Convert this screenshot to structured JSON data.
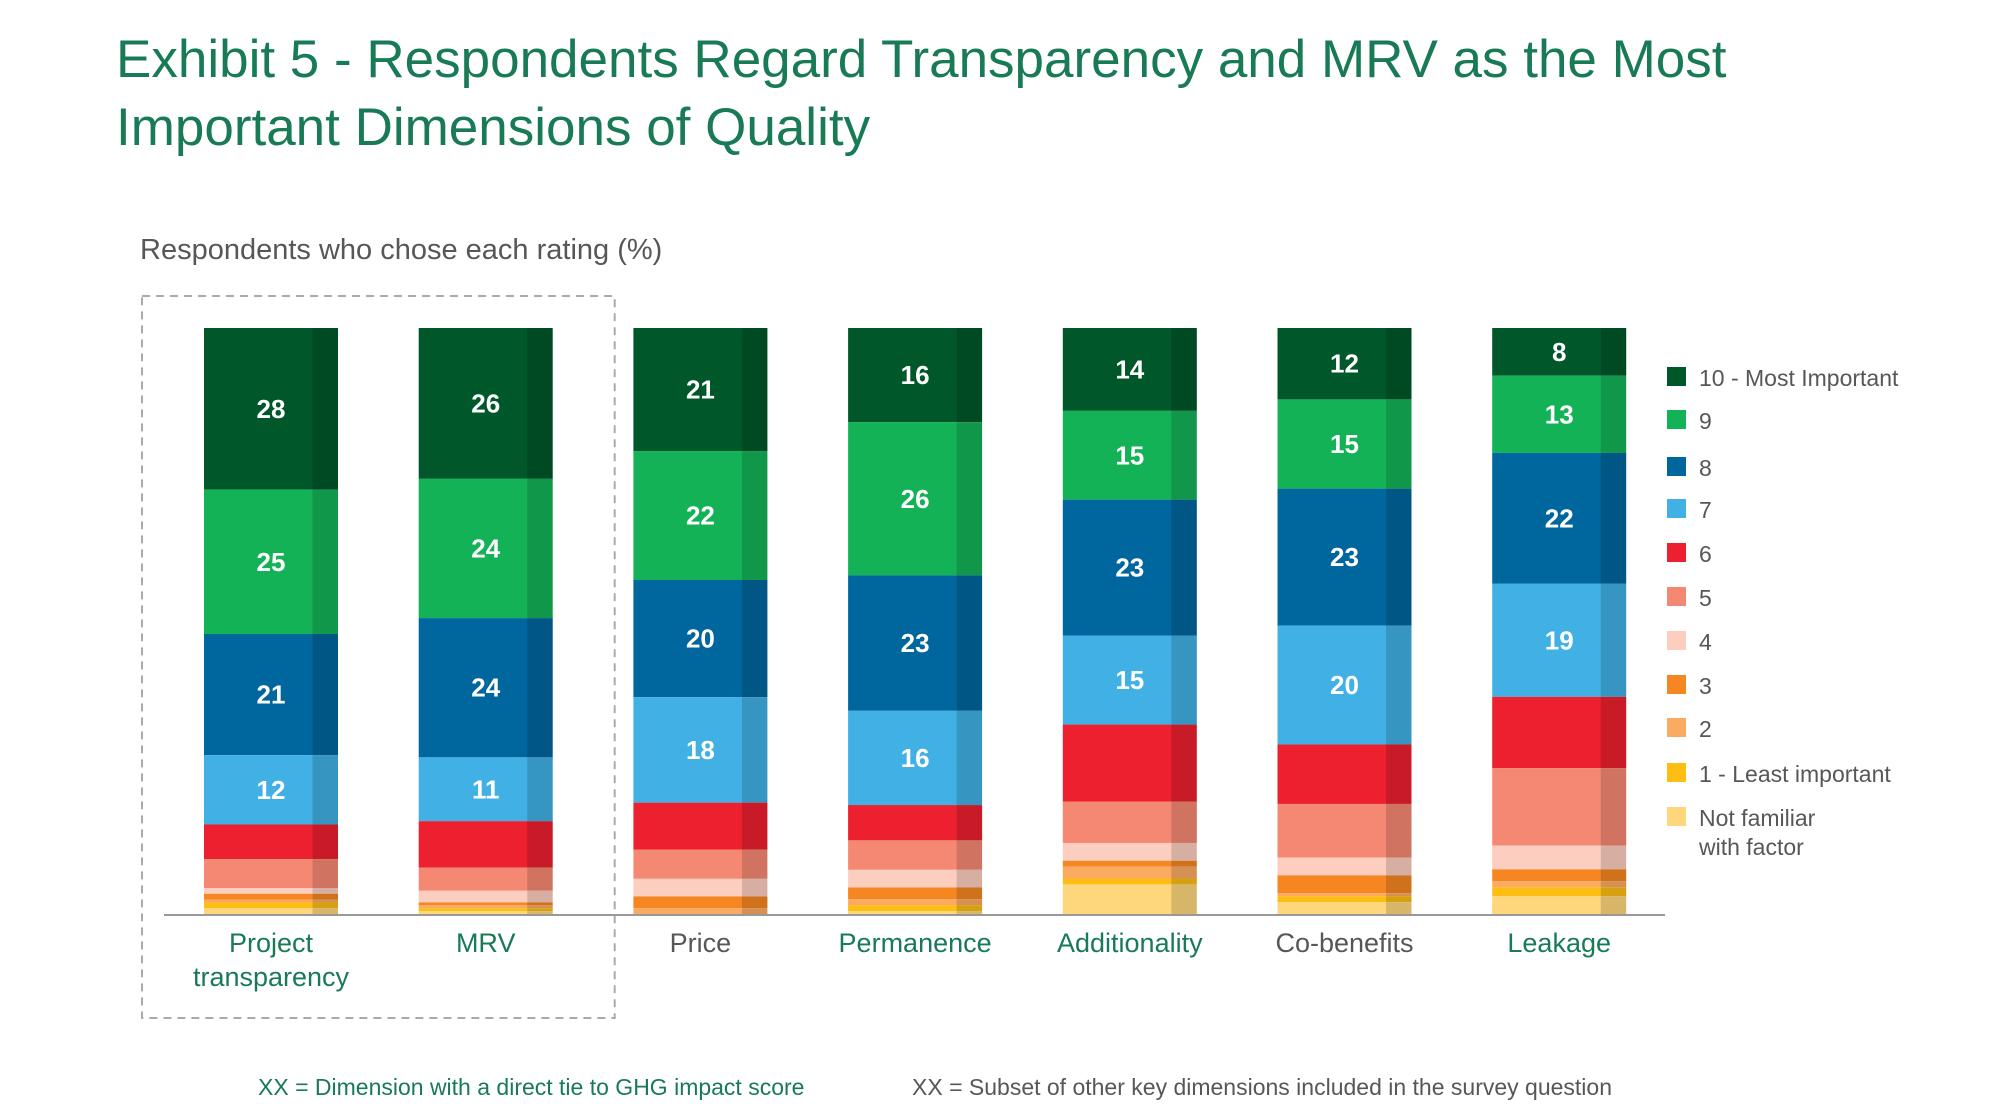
{
  "title": "Exhibit 5 - Respondents Regard Transparency and MRV as the Most Important Dimensions of Quality",
  "footnotes": {
    "direct_tie": "XX = Dimension with a direct tie to GHG impact score",
    "subset": "XX = Subset of other key dimensions included in the survey question"
  },
  "colors": {
    "accent_green": "#197a56",
    "text_gray": "#575757"
  },
  "chart_data": {
    "type": "bar",
    "stacked": true,
    "subtitle": "Respondents who chose each rating (%)",
    "categories": [
      "Project transparency",
      "MRV",
      "Price",
      "Permanence",
      "Additionality",
      "Co-benefits",
      "Leakage"
    ],
    "category_groups": [
      "direct",
      "direct",
      "other",
      "direct",
      "direct",
      "other",
      "direct"
    ],
    "highlighted_categories": [
      "Project transparency",
      "MRV"
    ],
    "legend_placement": "right",
    "grid": false,
    "ylim": [
      0,
      100
    ],
    "series": [
      {
        "name": "10 - Most Important",
        "color": "#00572a",
        "values": [
          28,
          26,
          21,
          16,
          14,
          12,
          8
        ],
        "labeled": true
      },
      {
        "name": "9",
        "color": "#14b257",
        "values": [
          25,
          24,
          22,
          26,
          15,
          15,
          13
        ],
        "labeled": true
      },
      {
        "name": "8",
        "color": "#00679e",
        "values": [
          21,
          24,
          20,
          23,
          23,
          23,
          22
        ],
        "labeled": true
      },
      {
        "name": "7",
        "color": "#41b0e4",
        "values": [
          12,
          11,
          18,
          16,
          15,
          20,
          19
        ],
        "labeled": true
      },
      {
        "name": "6",
        "color": "#ec202e",
        "values": [
          6,
          8,
          8,
          6,
          13,
          10,
          12
        ]
      },
      {
        "name": "5",
        "color": "#f58872",
        "values": [
          5,
          4,
          5,
          5,
          7,
          9,
          13
        ]
      },
      {
        "name": "4",
        "color": "#fccebf",
        "values": [
          1,
          2,
          3,
          3,
          3,
          3,
          4
        ]
      },
      {
        "name": "3",
        "color": "#f58621",
        "values": [
          1,
          0.5,
          2,
          2,
          1,
          3,
          2
        ]
      },
      {
        "name": "2",
        "color": "#fbaa62",
        "values": [
          0.5,
          0.5,
          1,
          1,
          2,
          0.5,
          1
        ]
      },
      {
        "name": "1 - Least important",
        "color": "#fdbd13",
        "values": [
          1,
          0.5,
          0,
          1,
          1,
          1,
          1.5
        ]
      },
      {
        "name": "Not familiar with factor",
        "color": "#fed67c",
        "values": [
          1,
          0.5,
          0,
          0.5,
          5,
          2,
          3
        ]
      }
    ]
  }
}
